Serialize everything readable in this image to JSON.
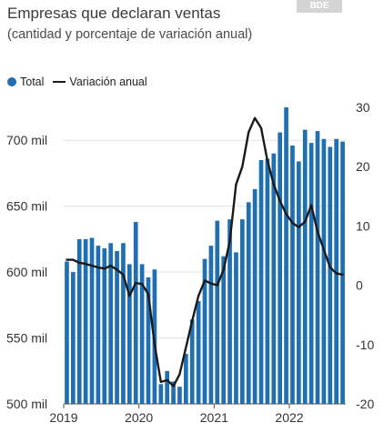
{
  "header": {
    "title": "Empresas que declaran ventas",
    "subtitle": "(cantidad y porcentaje de variación anual)",
    "badge": "BDE"
  },
  "legend": {
    "items": [
      {
        "label": "Total",
        "color": "#1f6fb2"
      },
      {
        "label": "Variación anual",
        "color": "#1a1a1a"
      }
    ],
    "placement": "top-left"
  },
  "chart_data": {
    "type": "bar",
    "title": "Empresas que declaran ventas",
    "subtitle": "(cantidad y porcentaje de variación anual)",
    "x_tick_labels": [
      "2019",
      "2020",
      "2021",
      "2022"
    ],
    "y_left": {
      "ylim": [
        500000,
        725000
      ],
      "ticks": [
        500000,
        550000,
        600000,
        650000,
        700000
      ],
      "tick_labels": [
        "500 mil",
        "550 mil",
        "600 mil",
        "650 mil",
        "700 mil"
      ]
    },
    "y_right": {
      "ylim": [
        -20,
        30
      ],
      "ticks": [
        -20,
        -10,
        0,
        10,
        20,
        30
      ],
      "tick_labels": [
        "-20",
        "-10",
        "0",
        "10",
        "20",
        "30"
      ]
    },
    "grid": "horizontal",
    "series": [
      {
        "name": "Total",
        "type": "bar",
        "axis": "left",
        "color": "#1f6fb2",
        "values": [
          608000,
          600000,
          625000,
          625000,
          626000,
          620000,
          618000,
          622000,
          616000,
          622000,
          606000,
          638000,
          606000,
          596000,
          602000,
          515000,
          525000,
          517000,
          513000,
          538000,
          564000,
          578000,
          610000,
          620000,
          639000,
          612000,
          640000,
          615000,
          640000,
          653000,
          663000,
          685000,
          686000,
          690000,
          706000,
          725000,
          696000,
          684000,
          708000,
          698000,
          707000,
          701000,
          695000,
          701000,
          699000
        ]
      },
      {
        "name": "Variación anual",
        "type": "line",
        "axis": "right",
        "color": "#1a1a1a",
        "values": [
          4.3,
          4.3,
          3.8,
          3.6,
          3.3,
          3.0,
          2.8,
          3.3,
          2.6,
          1.8,
          -1.8,
          0.4,
          0.2,
          -1.5,
          -10.0,
          -16.3,
          -16.0,
          -17.0,
          -15.0,
          -10.5,
          -6.0,
          -1.8,
          0.8,
          0.3,
          0.0,
          2.6,
          7.5,
          17.0,
          20.0,
          25.8,
          28.2,
          26.5,
          21.0,
          17.0,
          14.2,
          12.0,
          10.5,
          9.8,
          10.7,
          13.5,
          9.0,
          6.0,
          3.0,
          2.0,
          1.8
        ]
      }
    ]
  }
}
